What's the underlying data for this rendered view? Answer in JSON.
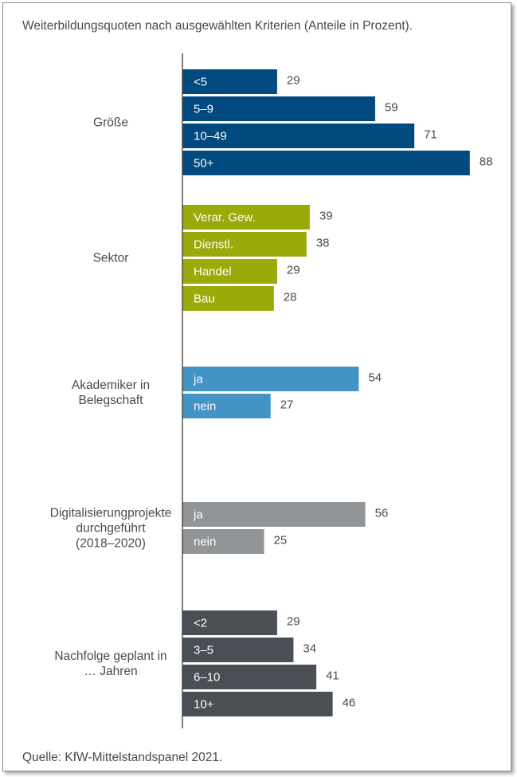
{
  "title": "Weiterbildungsquoten nach ausgewählten Kriterien (Anteile in Prozent).",
  "source": "Quelle: KfW-Mittelstandspanel 2021.",
  "chart_data": {
    "type": "bar",
    "orientation": "horizontal",
    "title": "Weiterbildungsquoten nach ausgewählten Kriterien (Anteile in Prozent).",
    "xlim": [
      0,
      100
    ],
    "grid": false,
    "groups": [
      {
        "name": "Größe",
        "color": "#004a7f",
        "bars": [
          {
            "label": "<5",
            "value": 29
          },
          {
            "label": "5–9",
            "value": 59
          },
          {
            "label": "10–49",
            "value": 71
          },
          {
            "label": "50+",
            "value": 88
          }
        ]
      },
      {
        "name": "Sektor",
        "color": "#9aaa08",
        "bars": [
          {
            "label": "Verar. Gew.",
            "value": 39
          },
          {
            "label": "Dienstl.",
            "value": 38
          },
          {
            "label": "Handel",
            "value": 29
          },
          {
            "label": "Bau",
            "value": 28
          }
        ]
      },
      {
        "name": "Akademiker in\nBelegschaft",
        "color": "#4493c5",
        "bars": [
          {
            "label": "ja",
            "value": 54
          },
          {
            "label": "nein",
            "value": 27
          }
        ]
      },
      {
        "name": "Digitalisierungprojekte\ndurchgeführt\n(2018–2020)",
        "color": "#929597",
        "bars": [
          {
            "label": "ja",
            "value": 56
          },
          {
            "label": "nein",
            "value": 25
          }
        ]
      },
      {
        "name": "Nachfolge geplant in\n… Jahren",
        "color": "#4a4f56",
        "bars": [
          {
            "label": "<2",
            "value": 29
          },
          {
            "label": "3–5",
            "value": 34
          },
          {
            "label": "6–10",
            "value": 41
          },
          {
            "label": "10+",
            "value": 46
          }
        ]
      }
    ]
  }
}
